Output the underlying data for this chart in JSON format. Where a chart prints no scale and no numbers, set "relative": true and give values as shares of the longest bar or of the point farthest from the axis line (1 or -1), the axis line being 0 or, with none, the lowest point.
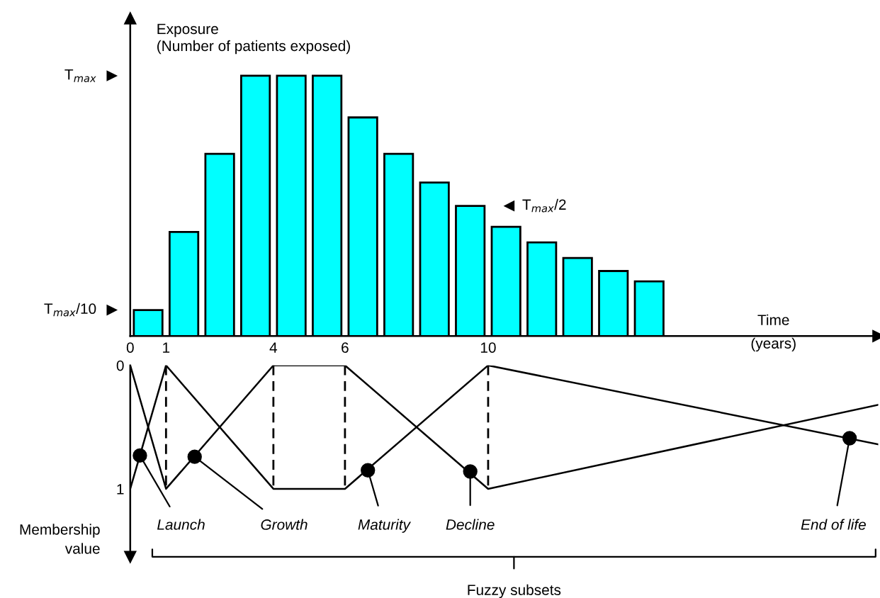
{
  "chart_data": [
    {
      "type": "bar",
      "ylabel": "Exposure\n(Number of patients exposed)",
      "xlabel": "Time\n(years)",
      "x": [
        0.5,
        1.5,
        2.5,
        3.5,
        4.5,
        5.5,
        6.5,
        7.5,
        8.5,
        9.5,
        10.5,
        11.5,
        12.5,
        13.5,
        14.5
      ],
      "values": [
        0.1,
        0.4,
        0.7,
        1.0,
        1.0,
        1.0,
        0.84,
        0.7,
        0.59,
        0.5,
        0.42,
        0.36,
        0.3,
        0.25,
        0.21
      ],
      "color": "#00ffff",
      "xlim": [
        0,
        20.9
      ],
      "xticks": [
        0,
        1,
        4,
        6,
        10
      ],
      "relative": true,
      "annotations": [
        "T$_{max}$",
        "T$_{max}$/10",
        {
          "text": "T$_{max}$/2",
          "x": 10.6,
          "y": 0.5
        }
      ],
      "grid": false
    },
    {
      "type": "line",
      "ylabel": "Membership\nvalue",
      "line_style": "solid",
      "tick_labels": "y",
      "xlim": [
        0,
        20.9
      ],
      "xticks": [
        0,
        1,
        4,
        6,
        10
      ],
      "ylim": [
        1.55,
        0
      ],
      "yticks": [
        0,
        1
      ],
      "series": [
        {
          "color": "#000000",
          "x": [
            0,
            1
          ],
          "values": [
            1,
            0
          ]
        },
        {
          "color": "#000000",
          "x": [
            0,
            1,
            4
          ],
          "values": [
            0,
            1,
            0
          ]
        },
        {
          "color": "#000000",
          "x": [
            1,
            4,
            6,
            10
          ],
          "values": [
            0,
            1,
            1,
            0
          ]
        },
        {
          "color": "#000000",
          "x": [
            4,
            6,
            10,
            20.9
          ],
          "values": [
            0,
            0,
            1,
            0.32
          ]
        },
        {
          "color": "#000000",
          "x": [
            10,
            20.9
          ],
          "values": [
            0,
            0.64
          ]
        },
        {
          "type": "scatter",
          "marker": "circle",
          "color": "#000000",
          "x": [
            0.27,
            1.8,
            6.64,
            9.5,
            20.1
          ],
          "values": [
            0.73,
            0.74,
            0.85,
            0.86,
            0.59
          ]
        }
      ],
      "ref_lines": [
        {
          "axis": "x",
          "value": 1,
          "line_style": "dashed",
          "color": "#000000"
        },
        {
          "axis": "x",
          "value": 4,
          "line_style": "dashed",
          "color": "#000000"
        },
        {
          "axis": "x",
          "value": 6,
          "line_style": "dashed",
          "color": "#000000"
        },
        {
          "axis": "x",
          "value": 10,
          "line_style": "dashed",
          "color": "#000000"
        }
      ],
      "annotations": [
        {
          "text": "Launch",
          "x": 0.27,
          "y": 0.73
        },
        {
          "text": "Growth",
          "x": 1.8,
          "y": 0.74
        },
        {
          "text": "Maturity",
          "x": 6.64,
          "y": 0.85
        },
        {
          "text": "Decline",
          "x": 9.5,
          "y": 0.86
        },
        {
          "text": "End of life",
          "x": 20.1,
          "y": 0.59
        },
        "Fuzzy subsets"
      ],
      "grid": false
    }
  ]
}
